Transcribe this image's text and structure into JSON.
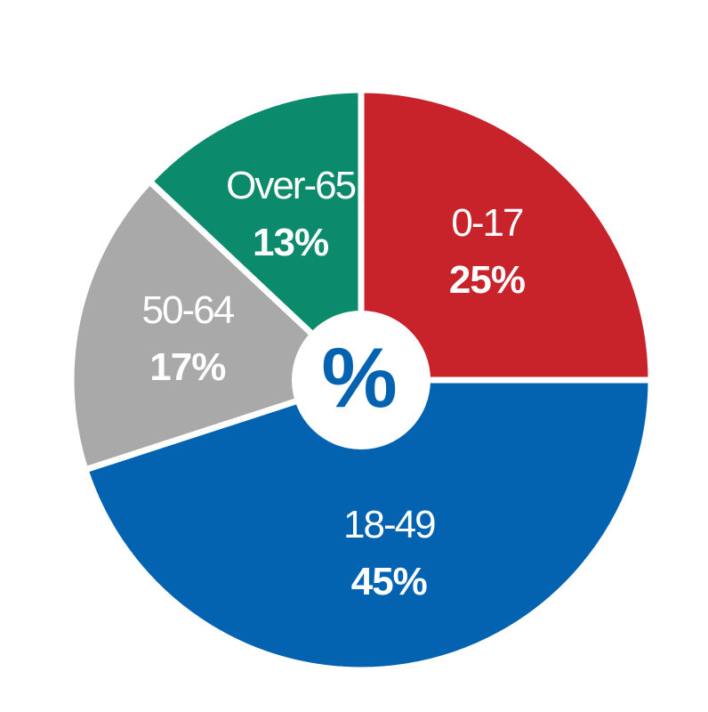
{
  "chart_data": {
    "type": "pie",
    "categories": [
      "0-17",
      "18-49",
      "50-64",
      "Over-65"
    ],
    "values": [
      25,
      45,
      17,
      13
    ],
    "value_labels": [
      "25%",
      "45%",
      "17%",
      "13%"
    ],
    "colors": [
      "#c8222b",
      "#0463b1",
      "#a9a9a9",
      "#0b8b6c"
    ],
    "center_label": "%"
  }
}
